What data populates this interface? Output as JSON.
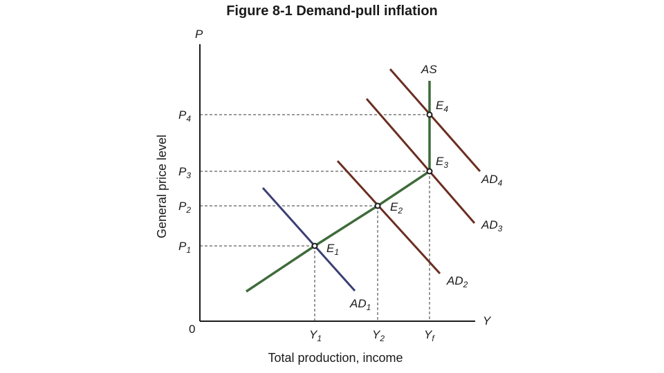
{
  "figure_title": "Figure 8-1 Demand-pull inflation",
  "axes": {
    "y_symbol": "P",
    "x_symbol": "Y",
    "origin": "0",
    "y_title": "General price level",
    "x_title": "Total production, income"
  },
  "price_levels": [
    {
      "base": "P",
      "sub": "1"
    },
    {
      "base": "P",
      "sub": "2"
    },
    {
      "base": "P",
      "sub": "3"
    },
    {
      "base": "P",
      "sub": "4"
    }
  ],
  "output_levels": [
    {
      "base": "Y",
      "sub": "1"
    },
    {
      "base": "Y",
      "sub": "2"
    },
    {
      "base": "Y",
      "sub": "f"
    }
  ],
  "curves": {
    "supply": {
      "name": "AS",
      "color": "#3f6b3a"
    },
    "demand": [
      {
        "base": "AD",
        "sub": "1",
        "color": "#3b3f73"
      },
      {
        "base": "AD",
        "sub": "2",
        "color": "#6b2e22"
      },
      {
        "base": "AD",
        "sub": "3",
        "color": "#6b2e22"
      },
      {
        "base": "AD",
        "sub": "4",
        "color": "#6b2e22"
      }
    ]
  },
  "equilibria": [
    {
      "base": "E",
      "sub": "1"
    },
    {
      "base": "E",
      "sub": "2"
    },
    {
      "base": "E",
      "sub": "3"
    },
    {
      "base": "E",
      "sub": "4"
    }
  ]
}
